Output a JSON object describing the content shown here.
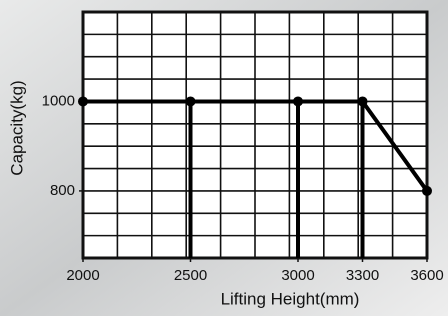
{
  "chart_data": {
    "type": "line",
    "x": [
      2000,
      2500,
      3000,
      3300,
      3600
    ],
    "values": [
      1000,
      1000,
      1000,
      1000,
      800
    ],
    "color": "#000000",
    "xlim": [
      2000,
      3600
    ],
    "xticks": [
      2000,
      2500,
      3000,
      3300,
      3600
    ],
    "ylim": [
      650,
      1200
    ],
    "yticks": [
      800,
      1000
    ],
    "xlabel": "Lifting Height(mm)",
    "ylabel": "Capacity(kg)"
  }
}
